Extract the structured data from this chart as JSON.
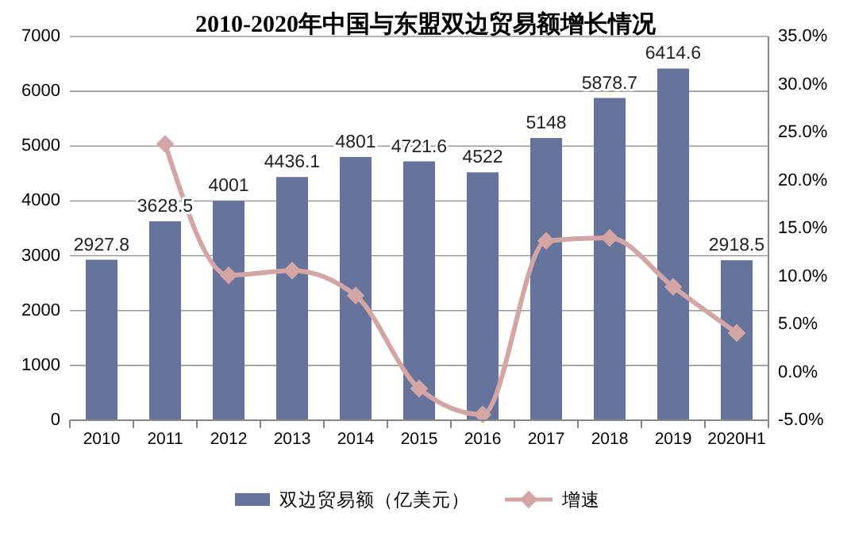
{
  "chart_data": {
    "type": "bar",
    "title": "2010-2020年中国与东盟双边贸易额增长情况",
    "categories": [
      "2010",
      "2011",
      "2012",
      "2013",
      "2014",
      "2015",
      "2016",
      "2017",
      "2018",
      "2019",
      "2020H1"
    ],
    "series": [
      {
        "name": "双边贸易额（亿美元）",
        "color": "#66739a",
        "values": [
          2927.8,
          3628.5,
          4001,
          4436.1,
          4801,
          4721.6,
          4522,
          5148,
          5878.7,
          6414.6,
          2918.5
        ],
        "value_labels": [
          "2927.8",
          "3628.5",
          "4001",
          "4436.1",
          "4801",
          "4721.6",
          "4522",
          "5148",
          "5878.7",
          "6414.6",
          "2918.5"
        ]
      },
      {
        "name": "增速",
        "type": "line",
        "axis": "y2",
        "color": "#d4a5a5",
        "marker": "diamond",
        "values": [
          null,
          23.8,
          10.1,
          10.6,
          8.0,
          -1.7,
          -4.4,
          13.7,
          14.0,
          8.9,
          4.1
        ]
      }
    ],
    "ylim": [
      0,
      7000
    ],
    "yticks": [
      0,
      1000,
      2000,
      3000,
      4000,
      5000,
      6000,
      7000
    ],
    "y2lim": [
      -5,
      35
    ],
    "y2ticks": [
      {
        "value": -5,
        "label": "-5.0%"
      },
      {
        "value": 0,
        "label": "0.0%"
      },
      {
        "value": 5,
        "label": "5.0%"
      },
      {
        "value": 10,
        "label": "10.0%"
      },
      {
        "value": 15,
        "label": "15.0%"
      },
      {
        "value": 20,
        "label": "20.0%"
      },
      {
        "value": 25,
        "label": "25.0%"
      },
      {
        "value": 30,
        "label": "30.0%"
      },
      {
        "value": 35,
        "label": "35.0%"
      }
    ],
    "grid": "y",
    "legend": "bottom"
  }
}
